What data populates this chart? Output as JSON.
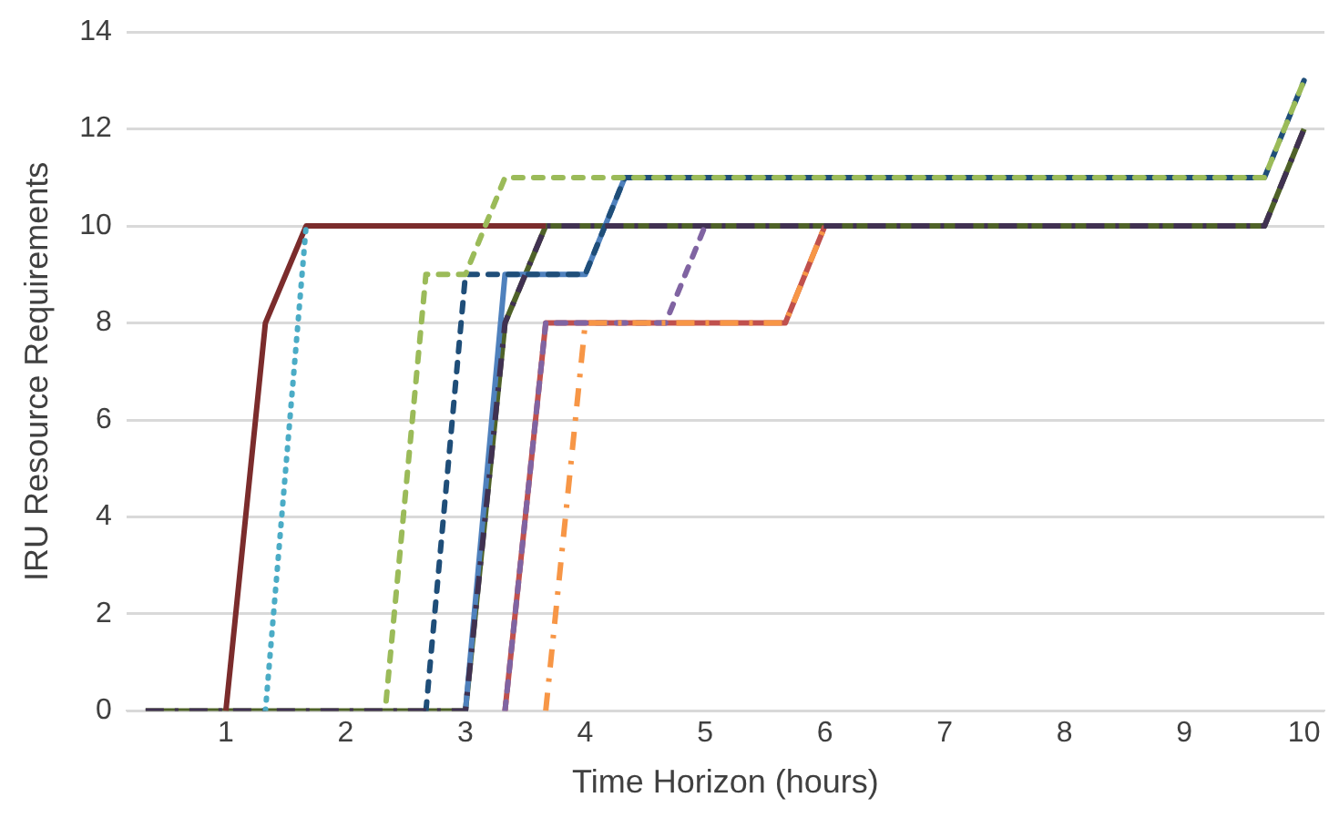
{
  "chart_data": {
    "type": "line",
    "xlabel": "Time Horizon (hours)",
    "ylabel": "IRU Resource Requirements",
    "x": [
      0.33,
      0.67,
      1,
      1.33,
      1.67,
      2,
      2.33,
      2.67,
      3,
      3.33,
      3.67,
      4,
      4.33,
      4.67,
      5,
      5.33,
      5.67,
      6,
      6.33,
      6.67,
      7,
      7.33,
      7.67,
      8,
      8.33,
      8.67,
      9,
      9.33,
      9.67,
      10
    ],
    "xlim": [
      0.17,
      10.17
    ],
    "xticks": [
      1,
      2,
      3,
      4,
      5,
      6,
      7,
      8,
      9,
      10
    ],
    "ylim": [
      0,
      14
    ],
    "yticks": [
      0,
      2,
      4,
      6,
      8,
      10,
      12,
      14
    ],
    "grid": "y",
    "legend": false,
    "marker": "none",
    "series": [
      {
        "color": "#4bacc6",
        "line_style": "dotted",
        "values": [
          null,
          null,
          null,
          0,
          10,
          null,
          null,
          null,
          null,
          null,
          null,
          null,
          null,
          null,
          null,
          null,
          null,
          null,
          null,
          null,
          null,
          null,
          null,
          null,
          null,
          null,
          null,
          null,
          null,
          null
        ]
      },
      {
        "color": "#f79646",
        "line_style": "dashdot",
        "values": [
          null,
          null,
          null,
          null,
          null,
          null,
          null,
          null,
          null,
          null,
          0,
          8,
          8,
          8,
          8,
          8,
          8,
          10,
          null,
          null,
          null,
          null,
          null,
          null,
          null,
          null,
          null,
          null,
          null,
          null
        ]
      },
      {
        "color": "#8064a2",
        "line_style": "dashed",
        "values": [
          null,
          null,
          null,
          null,
          null,
          null,
          null,
          null,
          null,
          0,
          8,
          8,
          8,
          8,
          10,
          null,
          null,
          null,
          null,
          null,
          null,
          null,
          null,
          null,
          null,
          null,
          null,
          null,
          null,
          null
        ]
      },
      {
        "color": "#403151",
        "line_style": "dashdot",
        "values": [
          0,
          0,
          0,
          0,
          0,
          0,
          0,
          0,
          0,
          8,
          10,
          10,
          10,
          10,
          10,
          10,
          10,
          10,
          10,
          10,
          10,
          10,
          10,
          10,
          10,
          10,
          10,
          10,
          10,
          12
        ]
      },
      {
        "color": "#9bbb59",
        "line_style": "dashed",
        "values": [
          null,
          null,
          null,
          null,
          null,
          null,
          0,
          9,
          9,
          11,
          11,
          11,
          11,
          11,
          11,
          11,
          11,
          11,
          11,
          11,
          11,
          11,
          11,
          11,
          11,
          11,
          11,
          11,
          11,
          13
        ]
      },
      {
        "color": "#1f4e79",
        "line_style": "dashed",
        "values": [
          null,
          null,
          null,
          null,
          null,
          null,
          null,
          0,
          9,
          9,
          9,
          9,
          11,
          11,
          11,
          11,
          11,
          11,
          11,
          11,
          11,
          11,
          11,
          11,
          11,
          11,
          11,
          11,
          11,
          13
        ]
      },
      {
        "color": "#c0504d",
        "line_style": "solid",
        "values": [
          null,
          null,
          null,
          null,
          null,
          null,
          null,
          null,
          null,
          0,
          8,
          8,
          8,
          8,
          8,
          8,
          8,
          10,
          null,
          null,
          null,
          null,
          null,
          null,
          null,
          null,
          null,
          null,
          null,
          null
        ]
      },
      {
        "color": "#4f81bd",
        "line_style": "solid",
        "values": [
          null,
          null,
          null,
          null,
          null,
          null,
          null,
          null,
          0,
          9,
          9,
          9,
          11,
          null,
          null,
          null,
          null,
          null,
          null,
          null,
          null,
          null,
          null,
          null,
          null,
          null,
          null,
          null,
          null,
          null
        ]
      },
      {
        "color": "#7b2c2c",
        "line_style": "solid",
        "values": [
          null,
          null,
          0,
          8,
          10,
          10,
          10,
          10,
          10,
          10,
          10,
          null,
          null,
          null,
          null,
          null,
          null,
          null,
          null,
          null,
          null,
          null,
          null,
          null,
          null,
          null,
          null,
          null,
          null,
          null
        ]
      },
      {
        "color": "#4f6228",
        "line_style": "solid",
        "values": [
          0,
          0,
          0,
          0,
          0,
          0,
          0,
          0,
          0,
          8,
          10,
          10,
          10,
          10,
          10,
          10,
          10,
          10,
          10,
          10,
          10,
          10,
          10,
          10,
          10,
          10,
          10,
          10,
          10,
          12
        ]
      }
    ]
  }
}
